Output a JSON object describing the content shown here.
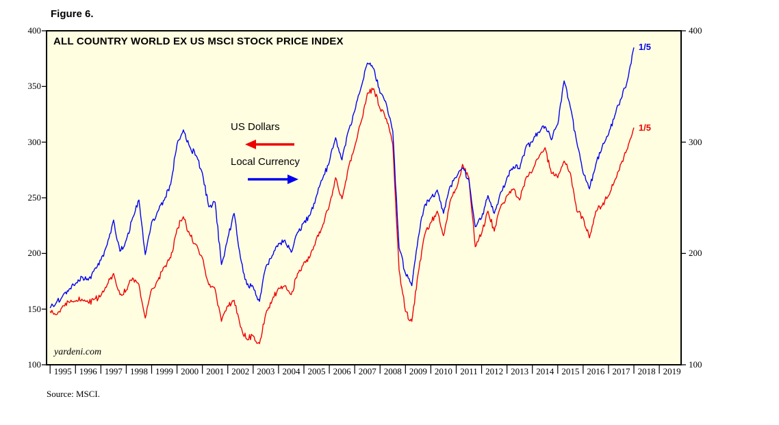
{
  "figure_label": "Figure 6.",
  "source": "Source: MSCI.",
  "watermark": "yardeni.com",
  "legend": [
    {
      "label": "US Dollars",
      "color": "#ee0000",
      "arrow": "left"
    },
    {
      "label": "Local Currency",
      "color": "#0000ee",
      "arrow": "right"
    }
  ],
  "chart_data": {
    "type": "line",
    "title": "ALL COUNTRY WORLD EX US MSCI STOCK PRICE INDEX",
    "xlabel": "",
    "ylabel": "",
    "background": "#fffee1",
    "x_range": [
      1994.86,
      2019.86
    ],
    "y_range": [
      100,
      400
    ],
    "x_ticks": [
      1995,
      1996,
      1997,
      1998,
      1999,
      2000,
      2001,
      2002,
      2003,
      2004,
      2005,
      2006,
      2007,
      2008,
      2009,
      2010,
      2011,
      2012,
      2013,
      2014,
      2015,
      2016,
      2017,
      2018,
      2019
    ],
    "y_ticks_left": [
      100,
      150,
      200,
      250,
      300,
      350,
      400
    ],
    "y_ticks_right": [
      100,
      200,
      300,
      400
    ],
    "grid": false,
    "x": [
      1995,
      1995.25,
      1995.5,
      1995.75,
      1996,
      1996.25,
      1996.5,
      1996.75,
      1997,
      1997.25,
      1997.5,
      1997.75,
      1998,
      1998.25,
      1998.5,
      1998.75,
      1999,
      1999.25,
      1999.5,
      1999.75,
      2000,
      2000.25,
      2000.5,
      2000.75,
      2001,
      2001.25,
      2001.5,
      2001.75,
      2002,
      2002.25,
      2002.5,
      2002.75,
      2003,
      2003.25,
      2003.5,
      2003.75,
      2004,
      2004.25,
      2004.5,
      2004.75,
      2005,
      2005.25,
      2005.5,
      2005.75,
      2006,
      2006.25,
      2006.5,
      2006.75,
      2007,
      2007.25,
      2007.5,
      2007.75,
      2008,
      2008.25,
      2008.5,
      2008.75,
      2009,
      2009.25,
      2009.5,
      2009.75,
      2010,
      2010.25,
      2010.5,
      2010.75,
      2011,
      2011.25,
      2011.5,
      2011.75,
      2012,
      2012.25,
      2012.5,
      2012.75,
      2013,
      2013.25,
      2013.5,
      2013.75,
      2014,
      2014.25,
      2014.5,
      2014.75,
      2015,
      2015.25,
      2015.5,
      2015.75,
      2016,
      2016.25,
      2016.5,
      2016.75,
      2017,
      2017.25,
      2017.5,
      2017.75,
      2018
    ],
    "series": [
      {
        "name": "US Dollars",
        "color": "#ee0000",
        "values": [
          148,
          145,
          153,
          156,
          157,
          159,
          156,
          159,
          162,
          172,
          182,
          163,
          167,
          178,
          172,
          142,
          168,
          176,
          188,
          196,
          222,
          233,
          217,
          208,
          196,
          172,
          168,
          139,
          153,
          158,
          134,
          123,
          126,
          119,
          146,
          158,
          169,
          171,
          163,
          182,
          192,
          198,
          214,
          226,
          243,
          268,
          249,
          277,
          296,
          318,
          344,
          348,
          330,
          321,
          298,
          185,
          148,
          139,
          182,
          216,
          228,
          238,
          216,
          246,
          258,
          280,
          268,
          206,
          218,
          238,
          220,
          242,
          252,
          258,
          248,
          268,
          274,
          286,
          295,
          272,
          268,
          283,
          272,
          238,
          232,
          214,
          238,
          243,
          252,
          266,
          281,
          294,
          313
        ]
      },
      {
        "name": "Local Currency",
        "color": "#0000ee",
        "values": [
          151,
          156,
          162,
          168,
          173,
          179,
          176,
          186,
          194,
          208,
          230,
          202,
          212,
          232,
          248,
          199,
          228,
          238,
          248,
          262,
          298,
          311,
          296,
          288,
          272,
          242,
          246,
          190,
          214,
          236,
          196,
          172,
          170,
          157,
          188,
          198,
          209,
          212,
          201,
          219,
          228,
          235,
          252,
          268,
          282,
          304,
          284,
          310,
          328,
          349,
          371,
          366,
          344,
          334,
          310,
          205,
          182,
          171,
          214,
          243,
          250,
          257,
          236,
          260,
          268,
          277,
          266,
          224,
          232,
          252,
          236,
          255,
          268,
          278,
          276,
          296,
          300,
          309,
          314,
          302,
          316,
          355,
          331,
          300,
          272,
          258,
          280,
          296,
          307,
          324,
          339,
          356,
          385
        ]
      }
    ],
    "annotations": [
      {
        "text": "1/5",
        "x": 2018.05,
        "y": 385,
        "color": "#0000ee",
        "series": "Local Currency"
      },
      {
        "text": "1/5",
        "x": 2018.05,
        "y": 313,
        "color": "#ee0000",
        "series": "US Dollars"
      }
    ]
  }
}
